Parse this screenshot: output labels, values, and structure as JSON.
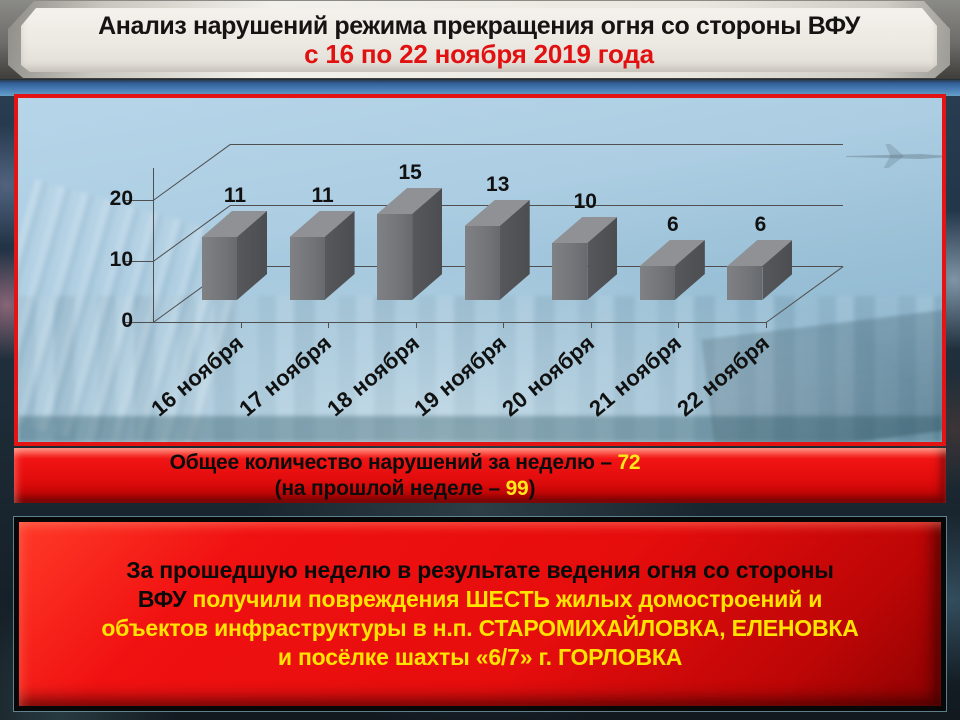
{
  "header": {
    "line1": "Анализ нарушений режима прекращения огня со стороны ВФУ",
    "line2": "с 16 по 22 ноября 2019 года"
  },
  "chart_data": {
    "type": "bar",
    "style": "3d-perspective-bar",
    "title": "",
    "xlabel": "",
    "ylabel": "",
    "categories": [
      "16 ноября",
      "17 ноября",
      "18 ноября",
      "19 ноября",
      "20 ноября",
      "21 ноября",
      "22 ноября"
    ],
    "values": [
      11,
      11,
      15,
      13,
      10,
      6,
      6
    ],
    "y_ticks": [
      0,
      10,
      20
    ],
    "ylim": [
      0,
      25
    ],
    "grid": true,
    "legend": "none",
    "bar_colors": {
      "front": "#74767a",
      "top": "#8f9194",
      "side": "#56585c"
    },
    "axis_color": "#4f4f4f",
    "label_color": "#111111"
  },
  "summary_banner": {
    "line1_prefix": "Общее количество нарушений за неделю – ",
    "line1_value": "72",
    "line2_prefix": "(на прошлой неделе – ",
    "line2_value": "99",
    "line2_suffix": ")",
    "value_color": "#ffe81a"
  },
  "info_box": {
    "line1": "За прошедшую неделю в результате ведения огня со стороны",
    "line2_black": "ВФУ",
    "line2_yellow": " получили повреждения ШЕСТЬ жилых домостроений и",
    "line3": "объектов инфраструктуры в н.п. СТАРОМИХАЙЛОВКА, ЕЛЕНОВКА",
    "line4": "и посёлке шахты «6/7» г. ГОРЛОВКА",
    "accent_color": "#ffe400"
  }
}
